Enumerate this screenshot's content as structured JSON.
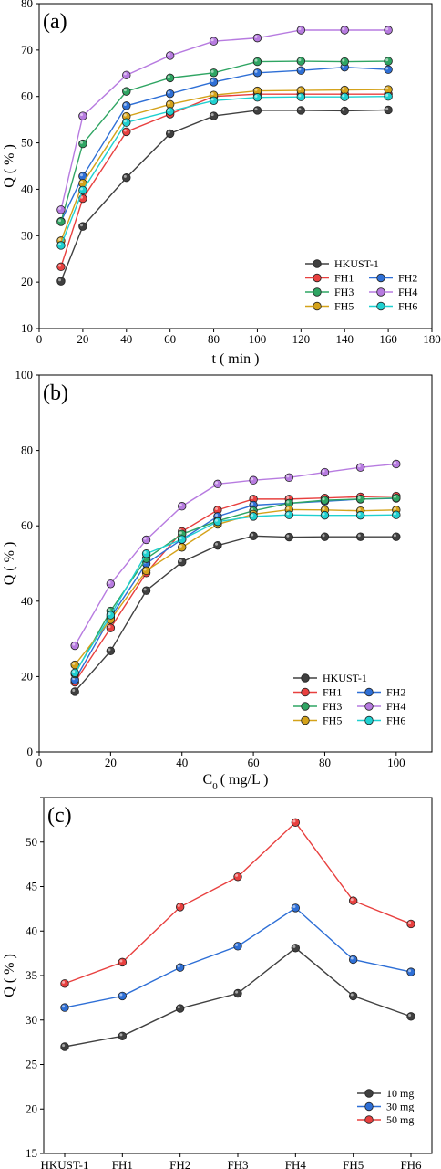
{
  "chart_data": [
    {
      "type": "line",
      "panel_label": "(a)",
      "xlabel": "t ( min )",
      "ylabel": "Q ( % )",
      "xlim": [
        0,
        180
      ],
      "ylim": [
        10,
        80
      ],
      "xticks": [
        0,
        20,
        40,
        60,
        80,
        100,
        120,
        140,
        160,
        180
      ],
      "yticks": [
        10,
        20,
        30,
        40,
        50,
        60,
        70,
        80
      ],
      "legend_placement": "bottom-right",
      "x": [
        10,
        20,
        40,
        60,
        80,
        100,
        120,
        140,
        160
      ],
      "series": [
        {
          "name": "HKUST-1",
          "color": "#404040",
          "values": [
            20.2,
            32.0,
            42.5,
            52.0,
            55.8,
            57.0,
            57.0,
            56.9,
            57.1
          ]
        },
        {
          "name": "FH1",
          "color": "#e8403f",
          "values": [
            23.3,
            38.0,
            52.4,
            56.2,
            60.0,
            60.5,
            60.5,
            60.5,
            60.5
          ]
        },
        {
          "name": "FH2",
          "color": "#2e6fd6",
          "values": [
            33.1,
            42.8,
            58.0,
            60.6,
            63.1,
            65.1,
            65.6,
            66.3,
            65.8
          ]
        },
        {
          "name": "FH3",
          "color": "#2fa563",
          "values": [
            33.0,
            49.8,
            61.1,
            64.0,
            65.1,
            67.5,
            67.6,
            67.5,
            67.6
          ]
        },
        {
          "name": "FH4",
          "color": "#b77be0",
          "values": [
            35.6,
            55.8,
            64.6,
            68.8,
            71.9,
            72.6,
            74.3,
            74.3,
            74.3
          ]
        },
        {
          "name": "FH5",
          "color": "#d4a21a",
          "values": [
            28.9,
            41.3,
            55.7,
            58.3,
            60.3,
            61.2,
            61.3,
            61.4,
            61.5
          ]
        },
        {
          "name": "FH6",
          "color": "#1fd0d0",
          "values": [
            27.9,
            39.8,
            54.4,
            56.8,
            59.1,
            59.8,
            59.9,
            59.9,
            60.0
          ]
        }
      ]
    },
    {
      "type": "line",
      "panel_label": "(b)",
      "xlabel_main": "C",
      "xlabel_sub": "0",
      "xlabel_rest": "( mg/L )",
      "ylabel": "Q ( % )",
      "xlim": [
        0,
        110
      ],
      "ylim": [
        0,
        100
      ],
      "xticks": [
        0,
        20,
        40,
        60,
        80,
        100
      ],
      "yticks": [
        0,
        20,
        40,
        60,
        80,
        100
      ],
      "legend_placement": "bottom-right",
      "x": [
        10,
        20,
        30,
        40,
        50,
        60,
        70,
        80,
        90,
        100
      ],
      "series": [
        {
          "name": "HKUST-1",
          "color": "#404040",
          "values": [
            16.0,
            26.8,
            42.8,
            50.4,
            54.8,
            57.3,
            57.0,
            57.1,
            57.1,
            57.1
          ]
        },
        {
          "name": "FH1",
          "color": "#e8403f",
          "values": [
            18.5,
            32.9,
            47.5,
            58.5,
            64.2,
            67.1,
            67.1,
            67.4,
            67.7,
            67.9
          ]
        },
        {
          "name": "FH2",
          "color": "#2e6fd6",
          "values": [
            19.1,
            35.7,
            50.0,
            56.4,
            62.5,
            65.5,
            66.0,
            66.5,
            67.1,
            67.3
          ]
        },
        {
          "name": "FH3",
          "color": "#2fa563",
          "values": [
            20.7,
            37.4,
            51.3,
            57.8,
            61.3,
            64.0,
            66.0,
            66.8,
            67.1,
            67.4
          ]
        },
        {
          "name": "FH4",
          "color": "#b77be0",
          "values": [
            28.2,
            44.6,
            56.3,
            65.2,
            71.1,
            72.1,
            72.8,
            74.2,
            75.5,
            76.4
          ]
        },
        {
          "name": "FH5",
          "color": "#d4a21a",
          "values": [
            23.1,
            35.1,
            48.1,
            54.3,
            60.4,
            63.1,
            64.3,
            64.2,
            64.0,
            64.2
          ]
        },
        {
          "name": "FH6",
          "color": "#1fd0d0",
          "values": [
            21.0,
            36.3,
            52.6,
            56.4,
            61.1,
            62.5,
            62.9,
            62.8,
            62.8,
            62.9
          ]
        }
      ]
    },
    {
      "type": "line",
      "panel_label": "(c)",
      "xlabel": "",
      "ylabel": "Q ( % )",
      "ylim": [
        15,
        55
      ],
      "yticks": [
        15,
        20,
        25,
        30,
        35,
        40,
        45,
        50,
        55
      ],
      "ytick_labels": [
        "15",
        "20",
        "25",
        "30",
        "35",
        "40",
        "45",
        "50",
        ""
      ],
      "legend_placement": "bottom-right",
      "categories": [
        "HKUST-1",
        "FH1",
        "FH2",
        "FH3",
        "FH4",
        "FH5",
        "FH6"
      ],
      "series": [
        {
          "name": "10 mg",
          "color": "#404040",
          "values": [
            27.0,
            28.2,
            31.3,
            33.0,
            38.1,
            32.7,
            30.4
          ]
        },
        {
          "name": "30 mg",
          "color": "#2e6fd6",
          "values": [
            31.4,
            32.7,
            35.9,
            38.3,
            42.6,
            36.8,
            35.4
          ]
        },
        {
          "name": "50 mg",
          "color": "#e8403f",
          "values": [
            34.1,
            36.5,
            42.7,
            46.1,
            52.2,
            43.4,
            40.8
          ]
        }
      ]
    }
  ]
}
